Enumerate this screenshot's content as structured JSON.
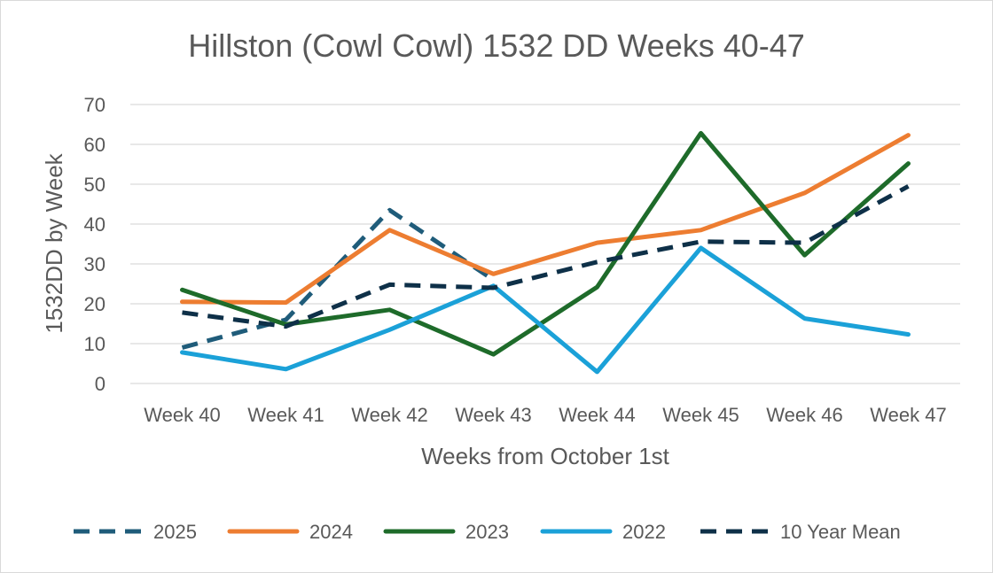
{
  "chart_data": {
    "type": "line",
    "title": "Hillston (Cowl Cowl) 1532 DD Weeks 40-47",
    "xlabel": "Weeks from October 1st",
    "ylabel": "1532DD by Week",
    "categories": [
      "Week 40",
      "Week 41",
      "Week 42",
      "Week 43",
      "Week 44",
      "Week 45",
      "Week 46",
      "Week 47"
    ],
    "ylim": [
      0,
      70
    ],
    "yticks": [
      0,
      10,
      20,
      30,
      40,
      50,
      60,
      70
    ],
    "grid": true,
    "legend_position": "bottom",
    "series": [
      {
        "name": "2025",
        "color": "#1f5c7a",
        "dashed": true,
        "values": [
          9,
          16,
          43.5,
          26,
          null,
          null,
          null,
          null
        ]
      },
      {
        "name": "2024",
        "color": "#ed7d31",
        "dashed": false,
        "values": [
          20.5,
          20.3,
          38.5,
          27.5,
          35.3,
          38.5,
          47.8,
          62.3
        ]
      },
      {
        "name": "2023",
        "color": "#1e6b2a",
        "dashed": false,
        "values": [
          23.5,
          14.8,
          18.5,
          7.3,
          24.2,
          62.8,
          32.2,
          55.2
        ]
      },
      {
        "name": "2022",
        "color": "#1ba1d8",
        "dashed": false,
        "values": [
          7.8,
          3.6,
          13.5,
          24.5,
          2.9,
          34,
          16.3,
          12.3
        ]
      },
      {
        "name": "10 Year Mean",
        "color": "#0e3048",
        "dashed": true,
        "values": [
          17.8,
          14.3,
          24.8,
          24,
          30.5,
          35.6,
          35.3,
          49.5
        ]
      }
    ]
  }
}
